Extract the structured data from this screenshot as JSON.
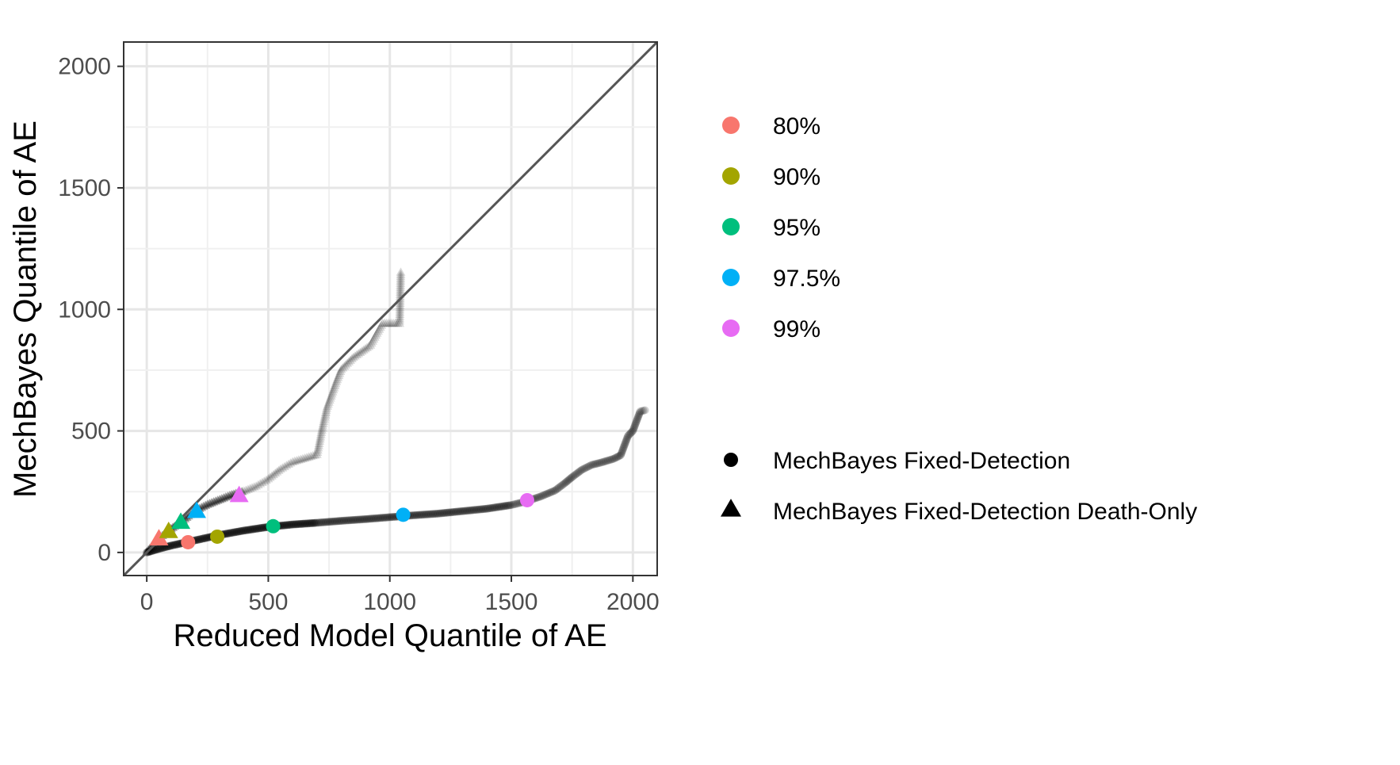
{
  "chart_data": {
    "type": "scatter",
    "xlabel": "Reduced Model Quantile of AE",
    "ylabel": "MechBayes Quantile of AE",
    "xlim": [
      -95,
      2100
    ],
    "ylim": [
      -95,
      2100
    ],
    "x_ticks": [
      0,
      500,
      1000,
      1500,
      2000
    ],
    "y_ticks": [
      0,
      500,
      1000,
      1500,
      2000
    ],
    "x_tick_labels": [
      "0",
      "500",
      "1000",
      "1500",
      "2000"
    ],
    "y_tick_labels": [
      "0",
      "500",
      "1000",
      "1500",
      "2000"
    ],
    "grid": true,
    "reference_line": {
      "slope": 1,
      "intercept": 0
    },
    "shape_legend": [
      {
        "label": "MechBayes Fixed-Detection",
        "shape": "circle"
      },
      {
        "label": "MechBayes Fixed-Detection Death-Only",
        "shape": "triangle"
      }
    ],
    "quantile_legend": [
      {
        "label": "80%",
        "color": "#F8766D"
      },
      {
        "label": "90%",
        "color": "#A3A500"
      },
      {
        "label": "95%",
        "color": "#00BF7D"
      },
      {
        "label": "97.5%",
        "color": "#00B0F6"
      },
      {
        "label": "99%",
        "color": "#E76BF3"
      }
    ],
    "highlighted": {
      "circle": [
        {
          "quantile": "80%",
          "x": 170,
          "y": 42
        },
        {
          "quantile": "90%",
          "x": 290,
          "y": 65
        },
        {
          "quantile": "95%",
          "x": 520,
          "y": 108
        },
        {
          "quantile": "97.5%",
          "x": 1055,
          "y": 155
        },
        {
          "quantile": "99%",
          "x": 1565,
          "y": 215
        }
      ],
      "triangle": [
        {
          "quantile": "80%",
          "x": 50,
          "y": 52
        },
        {
          "quantile": "90%",
          "x": 90,
          "y": 82
        },
        {
          "quantile": "95%",
          "x": 140,
          "y": 120
        },
        {
          "quantile": "97.5%",
          "x": 205,
          "y": 165
        },
        {
          "quantile": "99%",
          "x": 380,
          "y": 230
        }
      ]
    },
    "background_series": {
      "circle": {
        "curve": [
          [
            0,
            0
          ],
          [
            50,
            15
          ],
          [
            100,
            28
          ],
          [
            200,
            50
          ],
          [
            300,
            72
          ],
          [
            400,
            90
          ],
          [
            500,
            105
          ],
          [
            600,
            115
          ],
          [
            700,
            122
          ],
          [
            800,
            130
          ],
          [
            900,
            137
          ],
          [
            1000,
            145
          ],
          [
            1100,
            153
          ],
          [
            1200,
            160
          ],
          [
            1300,
            170
          ],
          [
            1400,
            180
          ],
          [
            1500,
            195
          ],
          [
            1560,
            210
          ],
          [
            1620,
            230
          ],
          [
            1680,
            255
          ],
          [
            1720,
            285
          ],
          [
            1750,
            310
          ],
          [
            1790,
            340
          ],
          [
            1830,
            360
          ],
          [
            1870,
            370
          ],
          [
            1920,
            385
          ],
          [
            1950,
            400
          ],
          [
            1980,
            480
          ],
          [
            2000,
            500
          ],
          [
            2030,
            580
          ],
          [
            2050,
            585
          ]
        ],
        "color": "#000000"
      },
      "triangle": {
        "curve": [
          [
            0,
            0
          ],
          [
            50,
            55
          ],
          [
            100,
            95
          ],
          [
            150,
            130
          ],
          [
            200,
            170
          ],
          [
            250,
            195
          ],
          [
            300,
            215
          ],
          [
            350,
            235
          ],
          [
            400,
            250
          ],
          [
            450,
            270
          ],
          [
            500,
            300
          ],
          [
            550,
            340
          ],
          [
            600,
            370
          ],
          [
            650,
            385
          ],
          [
            700,
            400
          ],
          [
            720,
            500
          ],
          [
            740,
            590
          ],
          [
            780,
            700
          ],
          [
            800,
            750
          ],
          [
            850,
            800
          ],
          [
            920,
            850
          ],
          [
            970,
            940
          ],
          [
            1040,
            940
          ],
          [
            1045,
            1150
          ]
        ],
        "color": "#000000"
      }
    }
  }
}
